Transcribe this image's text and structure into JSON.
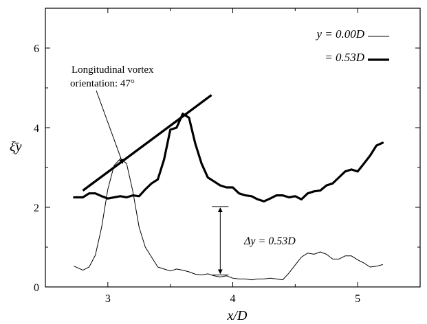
{
  "chart_data": {
    "type": "line",
    "xlabel": "x/D",
    "ylabel": "ξ̄y",
    "xlim": [
      2.5,
      5.5
    ],
    "ylim": [
      0,
      7
    ],
    "xticks": [
      3,
      4,
      5
    ],
    "yticks": [
      0,
      2,
      4,
      6
    ],
    "grid": false,
    "legend_position": "top-right",
    "legend": [
      {
        "label": "y = 0.00D",
        "series": 0
      },
      {
        "label": "= 0.53D",
        "series": 1
      }
    ],
    "series": [
      {
        "name": "y = 0.00D",
        "line": "thin",
        "x": [
          2.73,
          2.8,
          2.85,
          2.9,
          2.95,
          3.0,
          3.05,
          3.1,
          3.15,
          3.2,
          3.25,
          3.3,
          3.35,
          3.4,
          3.45,
          3.5,
          3.55,
          3.6,
          3.65,
          3.7,
          3.75,
          3.8,
          3.85,
          3.9,
          3.95,
          4.0,
          4.05,
          4.1,
          4.15,
          4.2,
          4.25,
          4.3,
          4.35,
          4.4,
          4.45,
          4.5,
          4.55,
          4.6,
          4.65,
          4.7,
          4.75,
          4.8,
          4.85,
          4.9,
          4.95,
          5.0,
          5.05,
          5.1,
          5.15,
          5.2
        ],
        "y": [
          0.52,
          0.42,
          0.5,
          0.8,
          1.5,
          2.45,
          3.05,
          3.22,
          3.1,
          2.4,
          1.5,
          1.0,
          0.75,
          0.5,
          0.45,
          0.4,
          0.45,
          0.42,
          0.38,
          0.32,
          0.3,
          0.33,
          0.28,
          0.25,
          0.28,
          0.22,
          0.2,
          0.2,
          0.18,
          0.2,
          0.2,
          0.22,
          0.2,
          0.18,
          0.35,
          0.55,
          0.75,
          0.85,
          0.82,
          0.88,
          0.82,
          0.7,
          0.7,
          0.78,
          0.78,
          0.68,
          0.6,
          0.5,
          0.52,
          0.56
        ]
      },
      {
        "name": "= 0.53D",
        "line": "thick",
        "x": [
          2.73,
          2.8,
          2.85,
          2.9,
          2.95,
          3.0,
          3.05,
          3.1,
          3.15,
          3.2,
          3.25,
          3.3,
          3.35,
          3.4,
          3.45,
          3.5,
          3.55,
          3.6,
          3.65,
          3.7,
          3.75,
          3.8,
          3.85,
          3.9,
          3.95,
          4.0,
          4.05,
          4.1,
          4.15,
          4.2,
          4.25,
          4.3,
          4.35,
          4.4,
          4.45,
          4.5,
          4.55,
          4.6,
          4.65,
          4.7,
          4.75,
          4.8,
          4.85,
          4.9,
          4.95,
          5.0,
          5.05,
          5.1,
          5.15,
          5.2
        ],
        "y": [
          2.25,
          2.25,
          2.35,
          2.35,
          2.28,
          2.22,
          2.25,
          2.28,
          2.25,
          2.3,
          2.28,
          2.45,
          2.6,
          2.7,
          3.2,
          3.95,
          4.0,
          4.35,
          4.25,
          3.6,
          3.1,
          2.75,
          2.65,
          2.55,
          2.5,
          2.5,
          2.35,
          2.3,
          2.28,
          2.2,
          2.15,
          2.22,
          2.3,
          2.3,
          2.25,
          2.28,
          2.2,
          2.35,
          2.4,
          2.42,
          2.55,
          2.6,
          2.75,
          2.9,
          2.95,
          2.9,
          3.1,
          3.3,
          3.55,
          3.62
        ]
      }
    ],
    "annotations": {
      "vortex_label_line1": "Longitudinal vortex",
      "vortex_label_line2": "orientation: 47°",
      "delta_label": "Δy = 0.53D",
      "orientation_line": {
        "x": [
          2.8,
          3.83
        ],
        "y": [
          2.42,
          4.82
        ]
      },
      "label_arrow_tip": {
        "x": 3.12,
        "y": 3.1
      },
      "delta_arrow": {
        "x": 3.9,
        "y_from": 0.3,
        "y_to": 2.02
      }
    }
  }
}
